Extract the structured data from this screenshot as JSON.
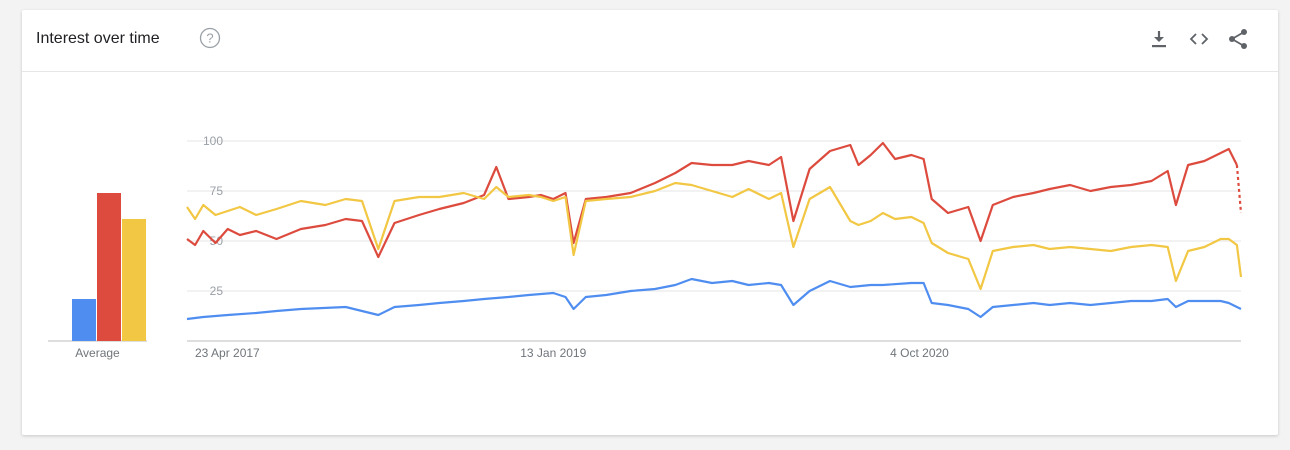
{
  "header": {
    "title": "Interest over time",
    "help_icon": "help-circle-icon",
    "tools": [
      {
        "name": "download-button",
        "icon": "download-icon"
      },
      {
        "name": "embed-button",
        "icon": "code-icon"
      },
      {
        "name": "share-button",
        "icon": "share-icon"
      }
    ]
  },
  "colors": {
    "blue": "#4f8ef0",
    "red": "#dc4b3e",
    "yellow": "#f2c744",
    "grid": "#e6e6e6",
    "axis": "#bdbdbd"
  },
  "chart_data": {
    "type": "line",
    "ylim": [
      0,
      100
    ],
    "y_ticks": [
      "100",
      "75",
      "50",
      "25"
    ],
    "x_tick_labels": [
      "23 Apr 2017",
      "13 Jan 2019",
      "4 Oct 2020"
    ],
    "x_range": [
      "2017-04-23",
      "2022-04-10"
    ],
    "average_label": "Average",
    "averages": [
      {
        "color": "#4f8ef0",
        "value": 21
      },
      {
        "color": "#dc4b3e",
        "value": 74
      },
      {
        "color": "#f2c744",
        "value": 61
      }
    ],
    "series": [
      {
        "color": "#dc4b3e",
        "points": [
          [
            "2017-04-23",
            51
          ],
          [
            "2017-05-07",
            48
          ],
          [
            "2017-05-21",
            55
          ],
          [
            "2017-06-11",
            49
          ],
          [
            "2017-07-02",
            56
          ],
          [
            "2017-07-23",
            53
          ],
          [
            "2017-08-20",
            55
          ],
          [
            "2017-09-24",
            51
          ],
          [
            "2017-11-05",
            56
          ],
          [
            "2017-12-17",
            58
          ],
          [
            "2018-01-21",
            61
          ],
          [
            "2018-02-18",
            60
          ],
          [
            "2018-03-18",
            42
          ],
          [
            "2018-04-15",
            59
          ],
          [
            "2018-05-27",
            63
          ],
          [
            "2018-07-01",
            66
          ],
          [
            "2018-08-12",
            69
          ],
          [
            "2018-09-16",
            73
          ],
          [
            "2018-10-07",
            87
          ],
          [
            "2018-10-28",
            71
          ],
          [
            "2018-12-02",
            72
          ],
          [
            "2018-12-23",
            73
          ],
          [
            "2019-01-13",
            71
          ],
          [
            "2019-02-03",
            74
          ],
          [
            "2019-02-17",
            49
          ],
          [
            "2019-03-10",
            71
          ],
          [
            "2019-04-14",
            72
          ],
          [
            "2019-05-26",
            74
          ],
          [
            "2019-07-07",
            79
          ],
          [
            "2019-08-11",
            84
          ],
          [
            "2019-09-08",
            89
          ],
          [
            "2019-10-13",
            88
          ],
          [
            "2019-11-17",
            88
          ],
          [
            "2019-12-15",
            90
          ],
          [
            "2020-01-19",
            88
          ],
          [
            "2020-02-09",
            92
          ],
          [
            "2020-03-01",
            60
          ],
          [
            "2020-03-29",
            86
          ],
          [
            "2020-05-03",
            95
          ],
          [
            "2020-06-07",
            98
          ],
          [
            "2020-06-21",
            88
          ],
          [
            "2020-07-12",
            93
          ],
          [
            "2020-08-02",
            99
          ],
          [
            "2020-08-23",
            91
          ],
          [
            "2020-09-20",
            93
          ],
          [
            "2020-10-11",
            91
          ],
          [
            "2020-10-25",
            71
          ],
          [
            "2020-11-22",
            64
          ],
          [
            "2020-12-27",
            67
          ],
          [
            "2021-01-17",
            50
          ],
          [
            "2021-02-07",
            68
          ],
          [
            "2021-03-14",
            72
          ],
          [
            "2021-04-18",
            74
          ],
          [
            "2021-05-16",
            76
          ],
          [
            "2021-06-20",
            78
          ],
          [
            "2021-07-25",
            75
          ],
          [
            "2021-08-29",
            77
          ],
          [
            "2021-10-03",
            78
          ],
          [
            "2021-11-07",
            80
          ],
          [
            "2021-12-05",
            85
          ],
          [
            "2021-12-19",
            68
          ],
          [
            "2022-01-09",
            88
          ],
          [
            "2022-02-06",
            90
          ],
          [
            "2022-03-06",
            94
          ],
          [
            "2022-03-20",
            96
          ],
          [
            "2022-04-03",
            88
          ]
        ],
        "partial_points": [
          [
            "2022-04-03",
            88
          ],
          [
            "2022-04-10",
            64
          ]
        ]
      },
      {
        "color": "#f2c744",
        "points": [
          [
            "2017-04-23",
            67
          ],
          [
            "2017-05-07",
            61
          ],
          [
            "2017-05-21",
            68
          ],
          [
            "2017-06-11",
            63
          ],
          [
            "2017-07-02",
            65
          ],
          [
            "2017-07-23",
            67
          ],
          [
            "2017-08-20",
            63
          ],
          [
            "2017-09-24",
            66
          ],
          [
            "2017-11-05",
            70
          ],
          [
            "2017-12-17",
            68
          ],
          [
            "2018-01-21",
            71
          ],
          [
            "2018-02-18",
            70
          ],
          [
            "2018-03-18",
            46
          ],
          [
            "2018-04-15",
            70
          ],
          [
            "2018-05-27",
            72
          ],
          [
            "2018-07-01",
            72
          ],
          [
            "2018-08-12",
            74
          ],
          [
            "2018-09-16",
            71
          ],
          [
            "2018-10-07",
            77
          ],
          [
            "2018-10-28",
            72
          ],
          [
            "2018-12-02",
            73
          ],
          [
            "2018-12-23",
            72
          ],
          [
            "2019-01-13",
            70
          ],
          [
            "2019-02-03",
            72
          ],
          [
            "2019-02-17",
            43
          ],
          [
            "2019-03-10",
            70
          ],
          [
            "2019-04-14",
            71
          ],
          [
            "2019-05-26",
            72
          ],
          [
            "2019-07-07",
            75
          ],
          [
            "2019-08-11",
            79
          ],
          [
            "2019-09-08",
            78
          ],
          [
            "2019-10-13",
            75
          ],
          [
            "2019-11-17",
            72
          ],
          [
            "2019-12-15",
            76
          ],
          [
            "2020-01-19",
            71
          ],
          [
            "2020-02-09",
            74
          ],
          [
            "2020-03-01",
            47
          ],
          [
            "2020-03-29",
            71
          ],
          [
            "2020-05-03",
            77
          ],
          [
            "2020-06-07",
            60
          ],
          [
            "2020-06-21",
            58
          ],
          [
            "2020-07-12",
            60
          ],
          [
            "2020-08-02",
            64
          ],
          [
            "2020-08-23",
            61
          ],
          [
            "2020-09-20",
            62
          ],
          [
            "2020-10-11",
            59
          ],
          [
            "2020-10-25",
            49
          ],
          [
            "2020-11-22",
            44
          ],
          [
            "2020-12-27",
            41
          ],
          [
            "2021-01-17",
            26
          ],
          [
            "2021-02-07",
            45
          ],
          [
            "2021-03-14",
            47
          ],
          [
            "2021-04-18",
            48
          ],
          [
            "2021-05-16",
            46
          ],
          [
            "2021-06-20",
            47
          ],
          [
            "2021-07-25",
            46
          ],
          [
            "2021-08-29",
            45
          ],
          [
            "2021-10-03",
            47
          ],
          [
            "2021-11-07",
            48
          ],
          [
            "2021-12-05",
            47
          ],
          [
            "2021-12-19",
            30
          ],
          [
            "2022-01-09",
            45
          ],
          [
            "2022-02-06",
            47
          ],
          [
            "2022-03-06",
            51
          ],
          [
            "2022-03-20",
            51
          ],
          [
            "2022-04-03",
            48
          ],
          [
            "2022-04-10",
            32
          ]
        ]
      },
      {
        "color": "#4f8ef0",
        "points": [
          [
            "2017-04-23",
            11
          ],
          [
            "2017-05-21",
            12
          ],
          [
            "2017-07-02",
            13
          ],
          [
            "2017-08-20",
            14
          ],
          [
            "2017-09-24",
            15
          ],
          [
            "2017-11-05",
            16
          ],
          [
            "2018-01-21",
            17
          ],
          [
            "2018-03-18",
            13
          ],
          [
            "2018-04-15",
            17
          ],
          [
            "2018-05-27",
            18
          ],
          [
            "2018-07-01",
            19
          ],
          [
            "2018-08-12",
            20
          ],
          [
            "2018-09-16",
            21
          ],
          [
            "2018-10-28",
            22
          ],
          [
            "2018-12-02",
            23
          ],
          [
            "2019-01-13",
            24
          ],
          [
            "2019-02-03",
            22
          ],
          [
            "2019-02-17",
            16
          ],
          [
            "2019-03-10",
            22
          ],
          [
            "2019-04-14",
            23
          ],
          [
            "2019-05-26",
            25
          ],
          [
            "2019-07-07",
            26
          ],
          [
            "2019-08-11",
            28
          ],
          [
            "2019-09-08",
            31
          ],
          [
            "2019-10-13",
            29
          ],
          [
            "2019-11-17",
            30
          ],
          [
            "2019-12-15",
            28
          ],
          [
            "2020-01-19",
            29
          ],
          [
            "2020-02-09",
            28
          ],
          [
            "2020-03-01",
            18
          ],
          [
            "2020-03-29",
            25
          ],
          [
            "2020-05-03",
            30
          ],
          [
            "2020-06-07",
            27
          ],
          [
            "2020-07-12",
            28
          ],
          [
            "2020-08-02",
            28
          ],
          [
            "2020-09-20",
            29
          ],
          [
            "2020-10-11",
            29
          ],
          [
            "2020-10-25",
            19
          ],
          [
            "2020-11-22",
            18
          ],
          [
            "2020-12-27",
            16
          ],
          [
            "2021-01-17",
            12
          ],
          [
            "2021-02-07",
            17
          ],
          [
            "2021-03-14",
            18
          ],
          [
            "2021-04-18",
            19
          ],
          [
            "2021-05-16",
            18
          ],
          [
            "2021-06-20",
            19
          ],
          [
            "2021-07-25",
            18
          ],
          [
            "2021-08-29",
            19
          ],
          [
            "2021-10-03",
            20
          ],
          [
            "2021-11-07",
            20
          ],
          [
            "2021-12-05",
            21
          ],
          [
            "2021-12-19",
            17
          ],
          [
            "2022-01-09",
            20
          ],
          [
            "2022-02-06",
            20
          ],
          [
            "2022-03-06",
            20
          ],
          [
            "2022-03-20",
            19
          ],
          [
            "2022-04-10",
            16
          ]
        ]
      }
    ]
  }
}
